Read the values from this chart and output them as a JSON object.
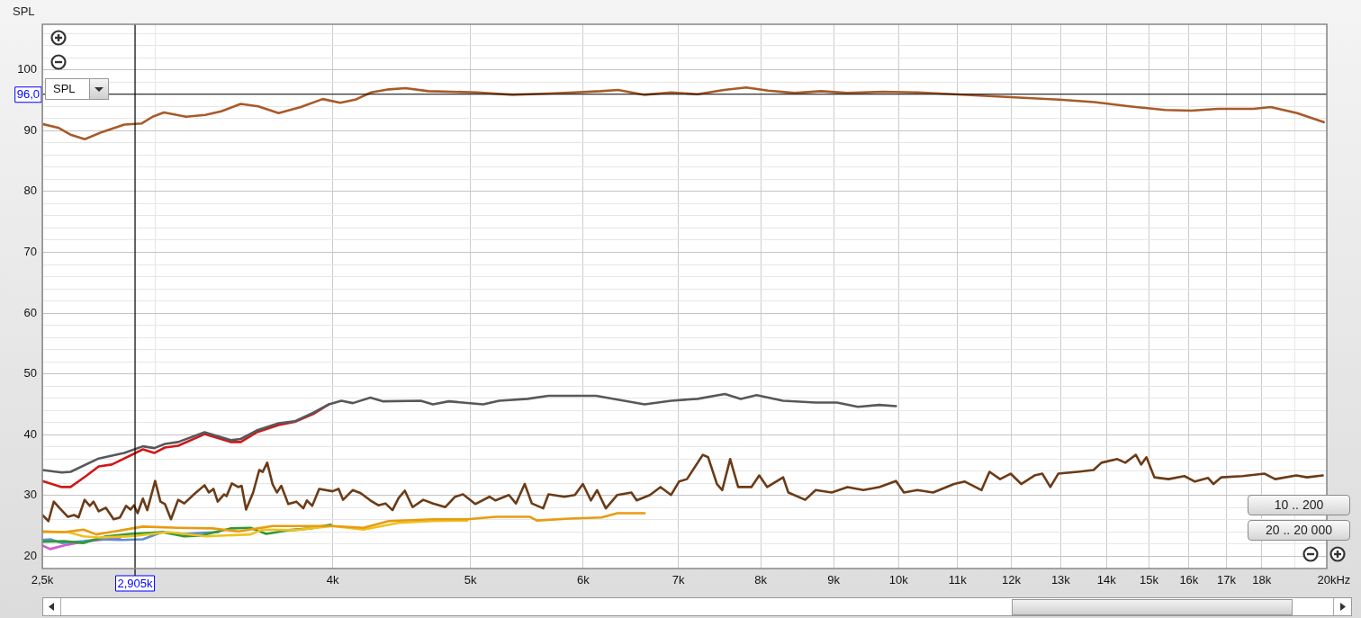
{
  "chart_data": {
    "type": "line",
    "ylabel": "SPL",
    "log": "x",
    "grid": true,
    "marker": "none",
    "line_style": "solid",
    "legend": false,
    "annotations": [
      "SPL",
      "10 .. 200",
      "20 .. 20 000"
    ],
    "xlim": [
      2500,
      20000
    ],
    "ylim": [
      18,
      107.5
    ],
    "xticks": [
      {
        "value": 2500,
        "label": "2,5k"
      },
      {
        "value": 3000,
        "label": null
      },
      {
        "value": 4000,
        "label": "4k"
      },
      {
        "value": 5000,
        "label": "5k"
      },
      {
        "value": 6000,
        "label": "6k"
      },
      {
        "value": 7000,
        "label": "7k"
      },
      {
        "value": 8000,
        "label": "8k"
      },
      {
        "value": 9000,
        "label": "9k"
      },
      {
        "value": 10000,
        "label": "10k"
      },
      {
        "value": 11000,
        "label": "11k"
      },
      {
        "value": 12000,
        "label": "12k"
      },
      {
        "value": 13000,
        "label": "13k"
      },
      {
        "value": 14000,
        "label": "14k"
      },
      {
        "value": 15000,
        "label": "15k"
      },
      {
        "value": 16000,
        "label": "16k"
      },
      {
        "value": 17000,
        "label": "17k"
      },
      {
        "value": 18000,
        "label": "18k"
      },
      {
        "value": 19000,
        "label": null
      },
      {
        "value": 20000,
        "label": "20k"
      }
    ],
    "xlabel": "Hz",
    "yticks": [
      20,
      {
        "value": 22,
        "label": null
      },
      {
        "value": 24,
        "label": null
      },
      {
        "value": 26,
        "label": null
      },
      {
        "value": 28,
        "label": null
      },
      30,
      {
        "value": 32,
        "label": null
      },
      {
        "value": 34,
        "label": null
      },
      {
        "value": 36,
        "label": null
      },
      {
        "value": 38,
        "label": null
      },
      40,
      {
        "value": 42,
        "label": null
      },
      {
        "value": 44,
        "label": null
      },
      {
        "value": 46,
        "label": null
      },
      {
        "value": 48,
        "label": null
      },
      50,
      {
        "value": 52,
        "label": null
      },
      {
        "value": 54,
        "label": null
      },
      {
        "value": 56,
        "label": null
      },
      {
        "value": 58,
        "label": null
      },
      60,
      {
        "value": 62,
        "label": null
      },
      {
        "value": 64,
        "label": null
      },
      {
        "value": 66,
        "label": null
      },
      {
        "value": 68,
        "label": null
      },
      70,
      {
        "value": 72,
        "label": null
      },
      {
        "value": 74,
        "label": null
      },
      {
        "value": 76,
        "label": null
      },
      {
        "value": 78,
        "label": null
      },
      80,
      {
        "value": 82,
        "label": null
      },
      {
        "value": 84,
        "label": null
      },
      {
        "value": 86,
        "label": null
      },
      {
        "value": 88,
        "label": null
      },
      90,
      {
        "value": 92,
        "label": null
      },
      {
        "value": 94,
        "label": null
      },
      {
        "value": 96,
        "label": null
      },
      {
        "value": 98,
        "label": null
      },
      100,
      {
        "value": 102,
        "label": null
      },
      {
        "value": 104,
        "label": null
      },
      {
        "value": 106,
        "label": null
      }
    ],
    "ref_lines": [
      {
        "axis": "x",
        "value": 2905,
        "label": "2,905k",
        "color": "#000000"
      },
      {
        "axis": "y",
        "value": 96,
        "label": "96,0",
        "color": "#000000"
      }
    ],
    "series": [
      {
        "type": "line",
        "color": "#a85a28",
        "x": [
          2500,
          2565,
          2620,
          2678,
          2755,
          2855,
          2937,
          2989,
          3044,
          3155,
          3255,
          3340,
          3447,
          3547,
          3665,
          3799,
          3936,
          4050,
          4149,
          4257,
          4382,
          4500,
          4672,
          5054,
          5352,
          5665,
          5914,
          6172,
          6350,
          6628,
          6919,
          7221,
          7538,
          7812,
          8095,
          8450,
          8820,
          9202,
          9747,
          10318,
          10927,
          11568,
          12245,
          12967,
          13729,
          14535,
          15392,
          16064,
          16767,
          17753,
          18266,
          19064,
          19902
        ],
        "values": [
          91.1,
          90.5,
          89.3,
          88.6,
          89.8,
          91.0,
          91.2,
          92.3,
          93.0,
          92.3,
          92.6,
          93.2,
          94.4,
          94.0,
          92.9,
          93.9,
          95.2,
          94.6,
          95.1,
          96.3,
          96.8,
          97.0,
          96.5,
          96.3,
          95.9,
          96.1,
          96.3,
          96.5,
          96.7,
          95.9,
          96.3,
          96.0,
          96.7,
          97.1,
          96.6,
          96.2,
          96.5,
          96.2,
          96.4,
          96.3,
          96.0,
          95.7,
          95.4,
          95.1,
          94.7,
          94.0,
          93.4,
          93.3,
          93.6,
          93.6,
          93.9,
          92.9,
          91.4
        ]
      },
      {
        "type": "line",
        "color": "#58585c",
        "x": [
          2500,
          2580,
          2617,
          2739,
          2855,
          2942,
          2997,
          3049,
          3115,
          3251,
          3393,
          3447,
          3537,
          3665,
          3761,
          3875,
          3976,
          4057,
          4133,
          4252,
          4337,
          4613,
          4705,
          4828,
          5104,
          5237,
          5483,
          5673,
          6128,
          6628,
          6919,
          7222,
          7548,
          7745,
          7946,
          8294,
          8742,
          9049,
          9364,
          9690,
          9957
        ],
        "values": [
          34.2,
          33.8,
          33.9,
          36.1,
          37.0,
          38.1,
          37.8,
          38.5,
          38.8,
          40.4,
          39.1,
          39.3,
          40.7,
          41.9,
          42.2,
          43.6,
          45.0,
          45.6,
          45.2,
          46.1,
          45.5,
          45.6,
          45.0,
          45.5,
          45.0,
          45.6,
          45.9,
          46.4,
          46.4,
          45.0,
          45.6,
          45.9,
          46.7,
          45.9,
          46.5,
          45.6,
          45.3,
          45.3,
          44.6,
          44.9,
          44.7
        ]
      },
      {
        "type": "line",
        "color": "#d01818",
        "x": [
          2500,
          2580,
          2617,
          2683,
          2739,
          2798,
          2884,
          2942,
          2997,
          3049,
          3115,
          3251,
          3393,
          3447,
          3537,
          3665,
          3761,
          3875,
          3976
        ],
        "values": [
          32.4,
          31.4,
          31.4,
          33.2,
          34.8,
          35.1,
          36.6,
          37.6,
          37.0,
          37.9,
          38.2,
          40.1,
          38.8,
          38.8,
          40.4,
          41.6,
          42.1,
          43.4,
          45.0
        ]
      },
      {
        "type": "line",
        "color": "#6b3b17",
        "x": [
          2500,
          2525,
          2547,
          2572,
          2606,
          2632,
          2651,
          2677,
          2700,
          2716,
          2739,
          2771,
          2806,
          2835,
          2863,
          2884,
          2900,
          2917,
          2942,
          2963,
          3001,
          3027,
          3049,
          3079,
          3115,
          3146,
          3196,
          3251,
          3274,
          3298,
          3321,
          3355,
          3369,
          3398,
          3433,
          3452,
          3477,
          3517,
          3552,
          3572,
          3598,
          3629,
          3655,
          3681,
          3723,
          3772,
          3815,
          3837,
          3870,
          3914,
          3999,
          4039,
          4068,
          4132,
          4186,
          4252,
          4307,
          4357,
          4407,
          4451,
          4496,
          4553,
          4632,
          4706,
          4801,
          4877,
          4940,
          5039,
          5156,
          5207,
          5321,
          5382,
          5459,
          5522,
          5625,
          5673,
          5821,
          5921,
          5998,
          6076,
          6137,
          6225,
          6342,
          6488,
          6544,
          6686,
          6801,
          6919,
          7008,
          7099,
          7283,
          7346,
          7452,
          7516,
          7613,
          7712,
          7879,
          7980,
          8084,
          8295,
          8365,
          8596,
          8744,
          8972,
          9206,
          9445,
          9691,
          9957,
          10086,
          10305,
          10573,
          10941,
          11131,
          11436,
          11585,
          11785,
          11988,
          12195,
          12460,
          12620,
          12784,
          12949,
          13362,
          13709,
          13887,
          14249,
          14432,
          14681,
          14808,
          14936,
          15129,
          15479,
          15882,
          16156,
          16505,
          16648,
          16862,
          17451,
          18085,
          18397,
          19039,
          19367,
          19871
        ],
        "values": [
          26.8,
          25.8,
          29.0,
          27.9,
          26.5,
          26.8,
          26.4,
          29.3,
          28.3,
          29.0,
          27.4,
          28.0,
          26.1,
          26.4,
          28.3,
          27.7,
          28.4,
          27.1,
          29.5,
          27.6,
          32.4,
          29.0,
          28.6,
          26.1,
          29.3,
          28.7,
          30.2,
          31.7,
          30.5,
          31.1,
          29.0,
          30.2,
          29.9,
          32.0,
          31.4,
          31.6,
          27.7,
          30.5,
          34.2,
          33.9,
          35.4,
          31.9,
          30.5,
          31.6,
          28.6,
          29.0,
          27.9,
          29.2,
          28.3,
          31.1,
          30.7,
          31.1,
          29.3,
          30.9,
          30.4,
          29.2,
          28.4,
          28.7,
          27.6,
          29.6,
          30.8,
          28.1,
          29.3,
          28.7,
          28.1,
          29.8,
          30.2,
          28.6,
          29.8,
          29.2,
          30.1,
          28.7,
          31.9,
          28.7,
          27.9,
          30.2,
          29.8,
          30.1,
          31.9,
          29.2,
          30.9,
          27.9,
          30.1,
          30.5,
          29.2,
          30.1,
          31.4,
          30.1,
          32.3,
          32.7,
          36.7,
          36.3,
          31.9,
          30.9,
          36.0,
          31.4,
          31.4,
          33.3,
          31.4,
          33.0,
          30.5,
          29.3,
          30.9,
          30.5,
          31.4,
          30.9,
          31.4,
          32.4,
          30.5,
          30.9,
          30.5,
          31.9,
          32.3,
          30.9,
          33.9,
          32.7,
          33.6,
          31.9,
          33.3,
          33.6,
          31.4,
          33.6,
          33.9,
          34.2,
          35.4,
          36.0,
          35.4,
          36.7,
          35.1,
          36.3,
          33.0,
          32.7,
          33.2,
          32.3,
          32.9,
          31.9,
          33.0,
          33.2,
          33.6,
          32.7,
          33.3,
          33.0,
          33.3
        ]
      },
      {
        "type": "line",
        "color": "#e89b10",
        "x": [
          2500,
          2591,
          2673,
          2728,
          2811,
          2942,
          3115,
          3293,
          3433,
          3629,
          3837,
          3999,
          4204,
          4381,
          4706,
          4975,
          5207,
          5506,
          5568,
          5871,
          6181,
          6342,
          6629
        ],
        "values": [
          24.1,
          24.0,
          24.4,
          23.6,
          24.1,
          24.9,
          24.7,
          24.6,
          24.1,
          25.0,
          25.0,
          25.0,
          24.7,
          25.8,
          26.1,
          26.1,
          26.5,
          26.5,
          25.9,
          26.2,
          26.4,
          27.1,
          27.1
        ]
      },
      {
        "type": "line",
        "color": "#f0c020",
        "x": [
          2500,
          2606,
          2673,
          2739,
          2884,
          3066,
          3261,
          3502,
          3572,
          3761,
          3999,
          4204,
          4451,
          4706,
          4975
        ],
        "values": [
          24.0,
          24.0,
          23.3,
          23.1,
          23.3,
          24.0,
          23.3,
          23.6,
          24.4,
          24.3,
          25.0,
          24.4,
          25.5,
          25.8,
          25.9
        ]
      },
      {
        "type": "line",
        "color": "#2e9a32",
        "x": [
          2500,
          2591,
          2673,
          2771,
          2884,
          3036,
          3146,
          3228,
          3393,
          3502,
          3593,
          3723,
          3859,
          3988
        ],
        "values": [
          22.4,
          22.5,
          22.2,
          23.3,
          23.7,
          24.0,
          23.3,
          23.4,
          24.6,
          24.7,
          23.7,
          24.3,
          24.6,
          25.2
        ]
      },
      {
        "type": "line",
        "color": "#5a8fd0",
        "x": [
          2500,
          2532,
          2580,
          2673,
          2739,
          2839,
          2942,
          3036,
          3146,
          3261,
          3326
        ],
        "values": [
          22.7,
          22.8,
          22.2,
          22.5,
          22.8,
          22.7,
          22.8,
          24.0,
          23.7,
          23.9,
          24.0
        ]
      },
      {
        "type": "line",
        "color": "#d45ad4",
        "x": [
          2500,
          2532,
          2591,
          2673,
          2771,
          2835
        ],
        "values": [
          21.8,
          21.2,
          21.8,
          22.4,
          22.8,
          23.0
        ]
      }
    ]
  }
}
